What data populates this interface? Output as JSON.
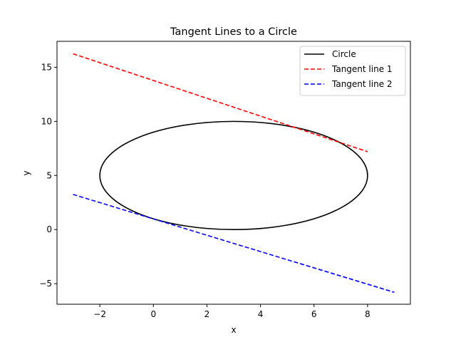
{
  "chart_data": {
    "type": "line",
    "title": "Tangent Lines to a Circle",
    "xlabel": "x",
    "ylabel": "y",
    "xlim": [
      -3.6,
      9.6
    ],
    "ylim": [
      -6.9,
      17.4
    ],
    "xticks": [
      -2,
      0,
      2,
      4,
      6,
      8
    ],
    "yticks": [
      -5,
      0,
      5,
      10,
      15
    ],
    "grid": false,
    "legend_position": "top-right",
    "series": [
      {
        "name": "Circle",
        "kind": "circle",
        "center": [
          3,
          5
        ],
        "radius": 5,
        "color": "#000000",
        "linestyle": "solid"
      },
      {
        "name": "Tangent line 1",
        "kind": "line",
        "x": [
          -3,
          8
        ],
        "y": [
          16.25,
          7.2
        ],
        "color": "#ff0000",
        "linestyle": "dashed"
      },
      {
        "name": "Tangent line 2",
        "kind": "line",
        "x": [
          -3,
          9
        ],
        "y": [
          3.25,
          -5.8
        ],
        "color": "#0000ff",
        "linestyle": "dashed"
      }
    ]
  }
}
